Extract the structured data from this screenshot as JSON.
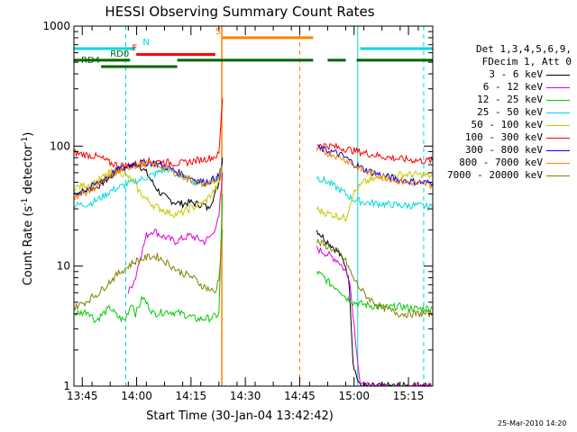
{
  "chart_data": {
    "type": "line",
    "title": "HESSI Observing Summary Count Rates",
    "xlabel": "Start Time (30-Jan-04 13:42:42)",
    "ylabel_parts": [
      "Count Rate (s",
      "-1",
      " detector",
      "-1",
      ")"
    ],
    "yscale": "log",
    "ylim": [
      1,
      1000
    ],
    "xlim_minutes": [
      0,
      99
    ],
    "ytick_labels": [
      "1",
      "10",
      "100",
      "1000"
    ],
    "ytick_values": [
      1,
      10,
      100,
      1000
    ],
    "xticks": [
      {
        "m": 2.3,
        "label": "13:45"
      },
      {
        "m": 17.3,
        "label": "14:00"
      },
      {
        "m": 32.3,
        "label": "14:15"
      },
      {
        "m": 47.3,
        "label": "14:30"
      },
      {
        "m": 62.3,
        "label": "14:45"
      },
      {
        "m": 77.3,
        "label": "15:00"
      },
      {
        "m": 92.3,
        "label": "15:15"
      }
    ],
    "legend_header": [
      "Det 1,3,4,5,6,9,",
      "FDecim 1, Att 0"
    ],
    "series": [
      {
        "name": "3 - 6 keV",
        "color": "#000000",
        "segA": [
          [
            0,
            40
          ],
          [
            6,
            45
          ],
          [
            8,
            50
          ],
          [
            10,
            55
          ],
          [
            12,
            62
          ],
          [
            14,
            66
          ],
          [
            16,
            70
          ],
          [
            18,
            70
          ],
          [
            20,
            60
          ],
          [
            22,
            48
          ],
          [
            24,
            40
          ],
          [
            26,
            36
          ],
          [
            28,
            34
          ],
          [
            30,
            33
          ],
          [
            32,
            34
          ],
          [
            34,
            33
          ],
          [
            36,
            32
          ],
          [
            37,
            30
          ],
          [
            38,
            35
          ],
          [
            39,
            40
          ],
          [
            40,
            50
          ],
          [
            41,
            80
          ]
        ],
        "segB": [
          [
            67,
            20
          ],
          [
            69,
            17
          ],
          [
            71,
            15
          ],
          [
            73,
            13
          ],
          [
            75,
            10
          ],
          [
            76,
            7
          ],
          [
            77,
            1.6
          ],
          [
            78,
            1.2
          ],
          [
            79,
            1
          ],
          [
            99,
            1
          ]
        ]
      },
      {
        "name": "6 - 12 keV",
        "color": "#e000e0",
        "segA": [
          [
            15,
            6
          ],
          [
            16,
            7
          ],
          [
            17,
            8
          ],
          [
            18,
            11
          ],
          [
            19,
            14
          ],
          [
            20,
            18
          ],
          [
            22,
            20
          ],
          [
            24,
            18
          ],
          [
            26,
            17
          ],
          [
            28,
            16
          ],
          [
            30,
            17
          ],
          [
            32,
            18
          ],
          [
            34,
            17
          ],
          [
            36,
            16
          ],
          [
            38,
            18
          ],
          [
            40,
            25
          ],
          [
            41,
            60
          ]
        ],
        "segB": [
          [
            67,
            14
          ],
          [
            69,
            13
          ],
          [
            71,
            12
          ],
          [
            73,
            11
          ],
          [
            75,
            9
          ],
          [
            76,
            8
          ],
          [
            77,
            4
          ],
          [
            78,
            2
          ],
          [
            79,
            1
          ],
          [
            99,
            1
          ]
        ]
      },
      {
        "name": "12 - 25 keV",
        "color": "#00cc00",
        "segA": [
          [
            0,
            4
          ],
          [
            4,
            4.2
          ],
          [
            6,
            3.5
          ],
          [
            8,
            4
          ],
          [
            10,
            4.5
          ],
          [
            12,
            3.8
          ],
          [
            14,
            3.5
          ],
          [
            16,
            5
          ],
          [
            17,
            4
          ],
          [
            19,
            5.5
          ],
          [
            22,
            4
          ],
          [
            26,
            4.2
          ],
          [
            30,
            4
          ],
          [
            34,
            3.6
          ],
          [
            38,
            3.7
          ],
          [
            40,
            4
          ],
          [
            41,
            40
          ]
        ],
        "segB": [
          [
            67,
            9
          ],
          [
            69,
            8
          ],
          [
            71,
            7
          ],
          [
            73,
            6.5
          ],
          [
            75,
            5.5
          ],
          [
            77,
            5
          ],
          [
            80,
            4.8
          ],
          [
            85,
            4.5
          ],
          [
            90,
            4.6
          ],
          [
            95,
            4.4
          ],
          [
            99,
            4.5
          ]
        ]
      },
      {
        "name": "25 - 50 keV",
        "color": "#00d8d8",
        "segA": [
          [
            0,
            32
          ],
          [
            4,
            33
          ],
          [
            6,
            35
          ],
          [
            8,
            38
          ],
          [
            10,
            42
          ],
          [
            13,
            46
          ],
          [
            16,
            50
          ],
          [
            18,
            52
          ],
          [
            20,
            55
          ],
          [
            22,
            58
          ],
          [
            24,
            62
          ],
          [
            26,
            64
          ],
          [
            28,
            60
          ],
          [
            30,
            55
          ],
          [
            32,
            52
          ],
          [
            34,
            50
          ],
          [
            36,
            48
          ],
          [
            38,
            52
          ],
          [
            40,
            56
          ],
          [
            41,
            70
          ]
        ],
        "segB": [
          [
            67,
            55
          ],
          [
            69,
            52
          ],
          [
            71,
            48
          ],
          [
            73,
            44
          ],
          [
            75,
            40
          ],
          [
            77,
            36
          ],
          [
            80,
            34
          ],
          [
            85,
            33
          ],
          [
            90,
            32
          ],
          [
            95,
            32
          ],
          [
            99,
            31
          ]
        ]
      },
      {
        "name": "50 - 100 keV",
        "color": "#c8c800",
        "segA": [
          [
            0,
            45
          ],
          [
            4,
            48
          ],
          [
            6,
            50
          ],
          [
            8,
            55
          ],
          [
            10,
            60
          ],
          [
            12,
            62
          ],
          [
            14,
            58
          ],
          [
            16,
            52
          ],
          [
            18,
            42
          ],
          [
            20,
            36
          ],
          [
            22,
            32
          ],
          [
            24,
            30
          ],
          [
            26,
            28
          ],
          [
            28,
            27
          ],
          [
            30,
            28
          ],
          [
            32,
            30
          ],
          [
            34,
            32
          ],
          [
            36,
            34
          ],
          [
            38,
            40
          ],
          [
            40,
            48
          ],
          [
            41,
            65
          ]
        ],
        "segB": [
          [
            67,
            30
          ],
          [
            69,
            28
          ],
          [
            71,
            27
          ],
          [
            73,
            26
          ],
          [
            75,
            25
          ],
          [
            77,
            40
          ],
          [
            80,
            50
          ],
          [
            85,
            55
          ],
          [
            90,
            58
          ],
          [
            95,
            58
          ],
          [
            99,
            56
          ]
        ]
      },
      {
        "name": "100 - 300 keV",
        "color": "#ff0000",
        "segA": [
          [
            0,
            88
          ],
          [
            3,
            85
          ],
          [
            6,
            82
          ],
          [
            8,
            78
          ],
          [
            10,
            72
          ],
          [
            12,
            70
          ],
          [
            14,
            68
          ],
          [
            16,
            70
          ],
          [
            18,
            72
          ],
          [
            20,
            74
          ],
          [
            22,
            75
          ],
          [
            24,
            74
          ],
          [
            26,
            73
          ],
          [
            28,
            72
          ],
          [
            30,
            72
          ],
          [
            32,
            74
          ],
          [
            34,
            76
          ],
          [
            36,
            78
          ],
          [
            38,
            80
          ],
          [
            40,
            85
          ],
          [
            41,
            250
          ]
        ],
        "segB": [
          [
            67,
            105
          ],
          [
            69,
            102
          ],
          [
            71,
            100
          ],
          [
            73,
            97
          ],
          [
            75,
            95
          ],
          [
            77,
            92
          ],
          [
            80,
            88
          ],
          [
            85,
            82
          ],
          [
            90,
            78
          ],
          [
            95,
            76
          ],
          [
            99,
            75
          ]
        ]
      },
      {
        "name": "300 - 800 keV",
        "color": "#0000ee",
        "segA": [
          [
            0,
            40
          ],
          [
            4,
            44
          ],
          [
            6,
            48
          ],
          [
            8,
            52
          ],
          [
            10,
            58
          ],
          [
            12,
            63
          ],
          [
            14,
            67
          ],
          [
            16,
            70
          ],
          [
            18,
            72
          ],
          [
            20,
            73
          ],
          [
            22,
            72
          ],
          [
            24,
            70
          ],
          [
            26,
            66
          ],
          [
            28,
            62
          ],
          [
            30,
            58
          ],
          [
            32,
            55
          ],
          [
            34,
            52
          ],
          [
            36,
            50
          ],
          [
            38,
            52
          ],
          [
            40,
            56
          ],
          [
            41,
            75
          ]
        ],
        "segB": [
          [
            67,
            96
          ],
          [
            69,
            93
          ],
          [
            71,
            90
          ],
          [
            73,
            86
          ],
          [
            75,
            80
          ],
          [
            77,
            72
          ],
          [
            80,
            64
          ],
          [
            85,
            57
          ],
          [
            90,
            52
          ],
          [
            95,
            50
          ],
          [
            99,
            49
          ]
        ]
      },
      {
        "name": "800 - 7000 keV",
        "color": "#ff8000",
        "segA": [
          [
            0,
            38
          ],
          [
            4,
            42
          ],
          [
            6,
            46
          ],
          [
            8,
            50
          ],
          [
            10,
            56
          ],
          [
            12,
            61
          ],
          [
            14,
            65
          ],
          [
            16,
            68
          ],
          [
            18,
            70
          ],
          [
            20,
            71
          ],
          [
            22,
            70
          ],
          [
            24,
            68
          ],
          [
            26,
            64
          ],
          [
            28,
            60
          ],
          [
            30,
            56
          ],
          [
            32,
            53
          ],
          [
            34,
            50
          ],
          [
            36,
            48
          ],
          [
            38,
            50
          ],
          [
            40,
            54
          ],
          [
            41,
            70
          ]
        ],
        "segB": [
          [
            67,
            92
          ],
          [
            69,
            89
          ],
          [
            71,
            86
          ],
          [
            73,
            82
          ],
          [
            75,
            77
          ],
          [
            77,
            70
          ],
          [
            80,
            62
          ],
          [
            85,
            56
          ],
          [
            90,
            51
          ],
          [
            95,
            49
          ],
          [
            99,
            47
          ]
        ]
      },
      {
        "name": "7000 - 20000 keV",
        "color": "#808000",
        "segA": [
          [
            0,
            4.5
          ],
          [
            3,
            5
          ],
          [
            5,
            5.5
          ],
          [
            7,
            6
          ],
          [
            9,
            7
          ],
          [
            11,
            8
          ],
          [
            13,
            9
          ],
          [
            15,
            10
          ],
          [
            17,
            11
          ],
          [
            19,
            11.5
          ],
          [
            21,
            12
          ],
          [
            23,
            12
          ],
          [
            25,
            11
          ],
          [
            27,
            10
          ],
          [
            29,
            9
          ],
          [
            31,
            8.5
          ],
          [
            33,
            8
          ],
          [
            35,
            7
          ],
          [
            37,
            6.5
          ],
          [
            39,
            6
          ],
          [
            40,
            8
          ],
          [
            41,
            20
          ]
        ],
        "segB": [
          [
            67,
            16
          ],
          [
            69,
            15
          ],
          [
            71,
            14
          ],
          [
            73,
            13
          ],
          [
            75,
            11
          ],
          [
            77,
            8
          ],
          [
            79,
            6.5
          ],
          [
            81,
            5.5
          ],
          [
            85,
            4.5
          ],
          [
            90,
            4
          ],
          [
            95,
            4
          ],
          [
            99,
            4
          ]
        ]
      }
    ],
    "orange_solid_line_minute": 40.8,
    "dashed_lines": [
      {
        "m": 62.3,
        "color": "#ff8000"
      },
      {
        "m": 14.3,
        "color": "#00d8d8"
      },
      {
        "m": 96.5,
        "color": "#00d8d8"
      }
    ],
    "cyan_solid_line_minute": 78.3,
    "flags": [
      {
        "letter": "N",
        "color": "#00d8d8",
        "segments": [
          [
            0,
            17
          ],
          [
            79,
            99
          ]
        ],
        "y": 650,
        "letter_m": 19
      },
      {
        "letter": "S",
        "color": "#ff8000",
        "segments": [
          [
            41,
            66
          ]
        ],
        "y": 800,
        "letter_m": 39
      },
      {
        "letter": "F",
        "color": "#ff0000",
        "segments": [
          [
            17.2,
            39
          ]
        ],
        "y": 580,
        "letter_m": 16
      },
      {
        "letter": "RD0",
        "color": "#006400",
        "segments": [
          [
            0,
            15.5
          ],
          [
            28.5,
            66
          ],
          [
            70,
            75
          ],
          [
            78,
            99
          ]
        ],
        "y": 520,
        "letter_m": 10
      },
      {
        "letter": "RD4",
        "color": "#006400",
        "segments": [
          [
            7.5,
            28.5
          ]
        ],
        "y": 460,
        "letter_m": 2
      }
    ]
  },
  "stamp": "25-Mar-2010 14:20"
}
